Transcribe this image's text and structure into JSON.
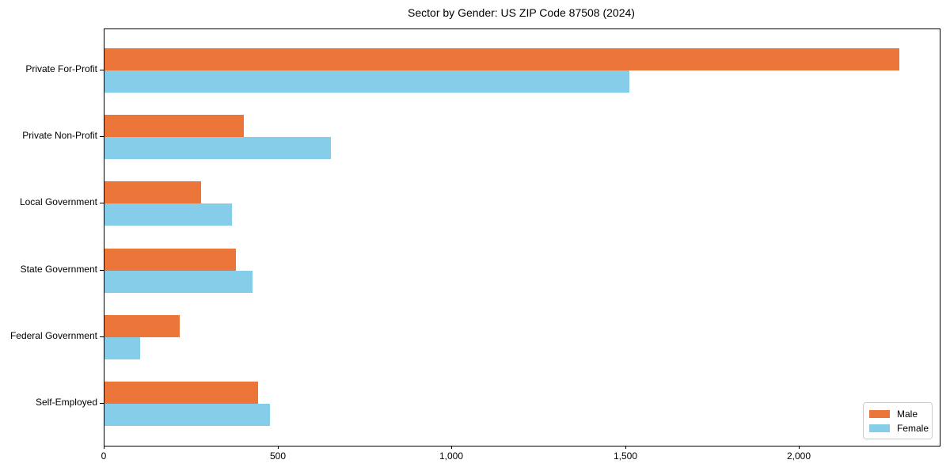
{
  "chart_data": {
    "type": "bar",
    "orientation": "horizontal",
    "title": "Sector by Gender: US ZIP Code 87508 (2024)",
    "categories": [
      "Private For-Profit",
      "Private Non-Profit",
      "Local Government",
      "State Government",
      "Federal Government",
      "Self-Employed"
    ],
    "series": [
      {
        "name": "Male",
        "color": "#ec7639",
        "values": [
          2287,
          400,
          278,
          379,
          216,
          442
        ]
      },
      {
        "name": "Female",
        "color": "#85cde8",
        "values": [
          1510,
          651,
          367,
          425,
          102,
          476
        ]
      }
    ],
    "xlabel": "",
    "ylabel": "",
    "xlim": [
      0,
      2403
    ],
    "x_ticks": [
      {
        "value": 0,
        "label": "0"
      },
      {
        "value": 500,
        "label": "500"
      },
      {
        "value": 1000,
        "label": "1,000"
      },
      {
        "value": 1500,
        "label": "1,500"
      },
      {
        "value": 2000,
        "label": "2,000"
      }
    ],
    "grid": false,
    "legend": {
      "position": "lower right",
      "entries": [
        "Male",
        "Female"
      ]
    },
    "colors": {
      "axis": "#000000",
      "text": "#000000",
      "legend_border": "#cccccc",
      "background": "#ffffff"
    }
  }
}
